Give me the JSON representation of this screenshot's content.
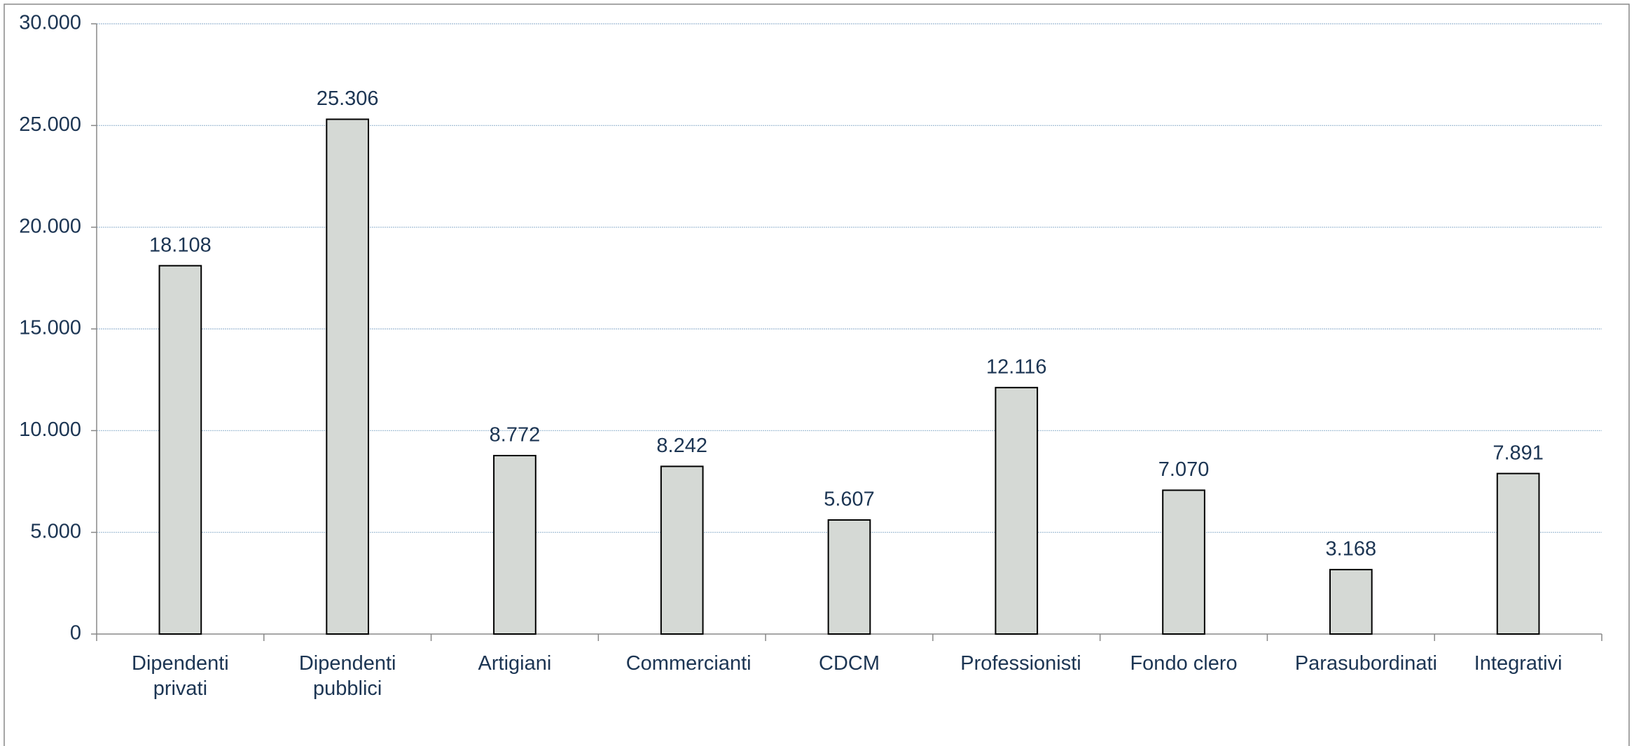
{
  "chart_data": {
    "type": "bar",
    "categories": [
      "Dipendenti privati",
      "Dipendenti pubblici",
      "Artigiani",
      "Commercianti",
      "CDCM",
      "Professionisti",
      "Fondo clero",
      "Parasubordinati",
      "Integrativi"
    ],
    "values": [
      18108,
      25306,
      8772,
      8242,
      5607,
      12116,
      7070,
      3168,
      7891
    ],
    "value_labels": [
      "18.108",
      "25.306",
      "8.772",
      "8.242",
      "5.607",
      "12.116",
      "7.070",
      "3.168",
      "7.891"
    ],
    "color": "#d5d9d5",
    "ylim": [
      0,
      30000
    ],
    "yticks": [
      0,
      {
        "value": 5000,
        "label": "5.000"
      },
      {
        "value": 10000,
        "label": "10.000"
      },
      {
        "value": 15000,
        "label": "15.000"
      },
      {
        "value": 20000,
        "label": "20.000"
      },
      {
        "value": 25000,
        "label": "25.000"
      },
      {
        "value": 30000,
        "label": "30.000"
      }
    ],
    "grid": true
  }
}
